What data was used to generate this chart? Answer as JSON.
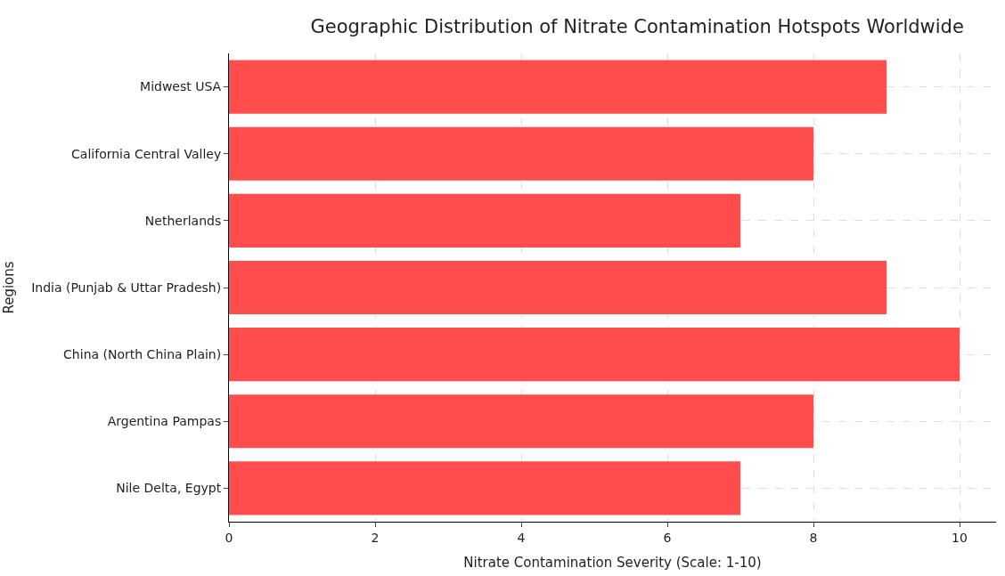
{
  "chart_data": {
    "type": "bar",
    "orientation": "horizontal",
    "title": "Geographic Distribution of Nitrate Contamination Hotspots Worldwide",
    "xlabel": "Nitrate Contamination Severity (Scale: 1-10)",
    "ylabel": "Regions",
    "categories": [
      "Midwest USA",
      "California Central Valley",
      "Netherlands",
      "India (Punjab & Uttar Pradesh)",
      "China (North China Plain)",
      "Argentina Pampas",
      "Nile Delta, Egypt"
    ],
    "values": [
      9,
      8,
      7,
      9,
      10,
      8,
      7
    ],
    "color": "#ff4c4c",
    "xlim": [
      0,
      10.5
    ],
    "xticks": [
      0,
      2,
      4,
      6,
      8,
      10
    ],
    "grid": true
  }
}
